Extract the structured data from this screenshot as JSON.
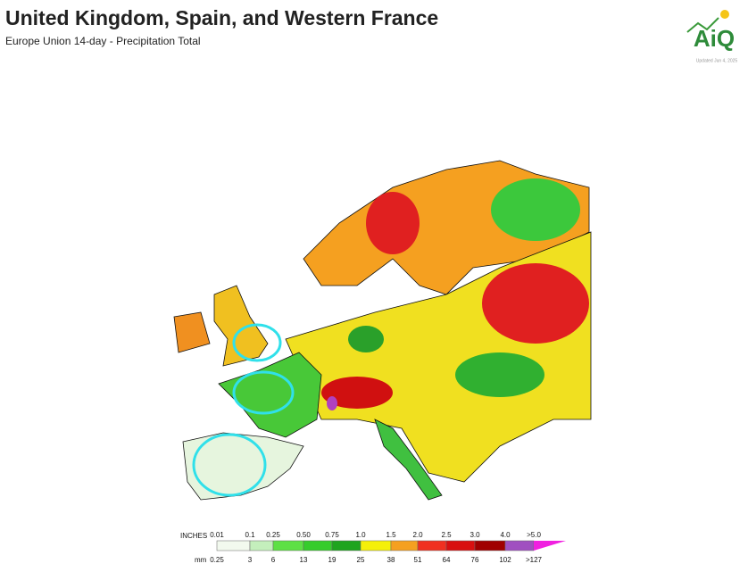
{
  "header": {
    "title": "United Kingdom, Spain, and Western France",
    "subtitle": "Europe Union 14-day - Precipitation Total"
  },
  "logo": {
    "text": "AiQ",
    "updated": "Updated Jun 4, 2025"
  },
  "legend": {
    "inches_label": "INCHES",
    "inches": [
      "0.01",
      "0.1",
      "0.25",
      "0.50",
      "0.75",
      "1.0",
      "1.5",
      "2.0",
      "2.5",
      "3.0",
      "4.0",
      ">5.0"
    ],
    "mm_label": "mm",
    "mm": [
      "0.25",
      "3",
      "6",
      "13",
      "19",
      "25",
      "38",
      "51",
      "64",
      "76",
      "102",
      ">127"
    ]
  }
}
